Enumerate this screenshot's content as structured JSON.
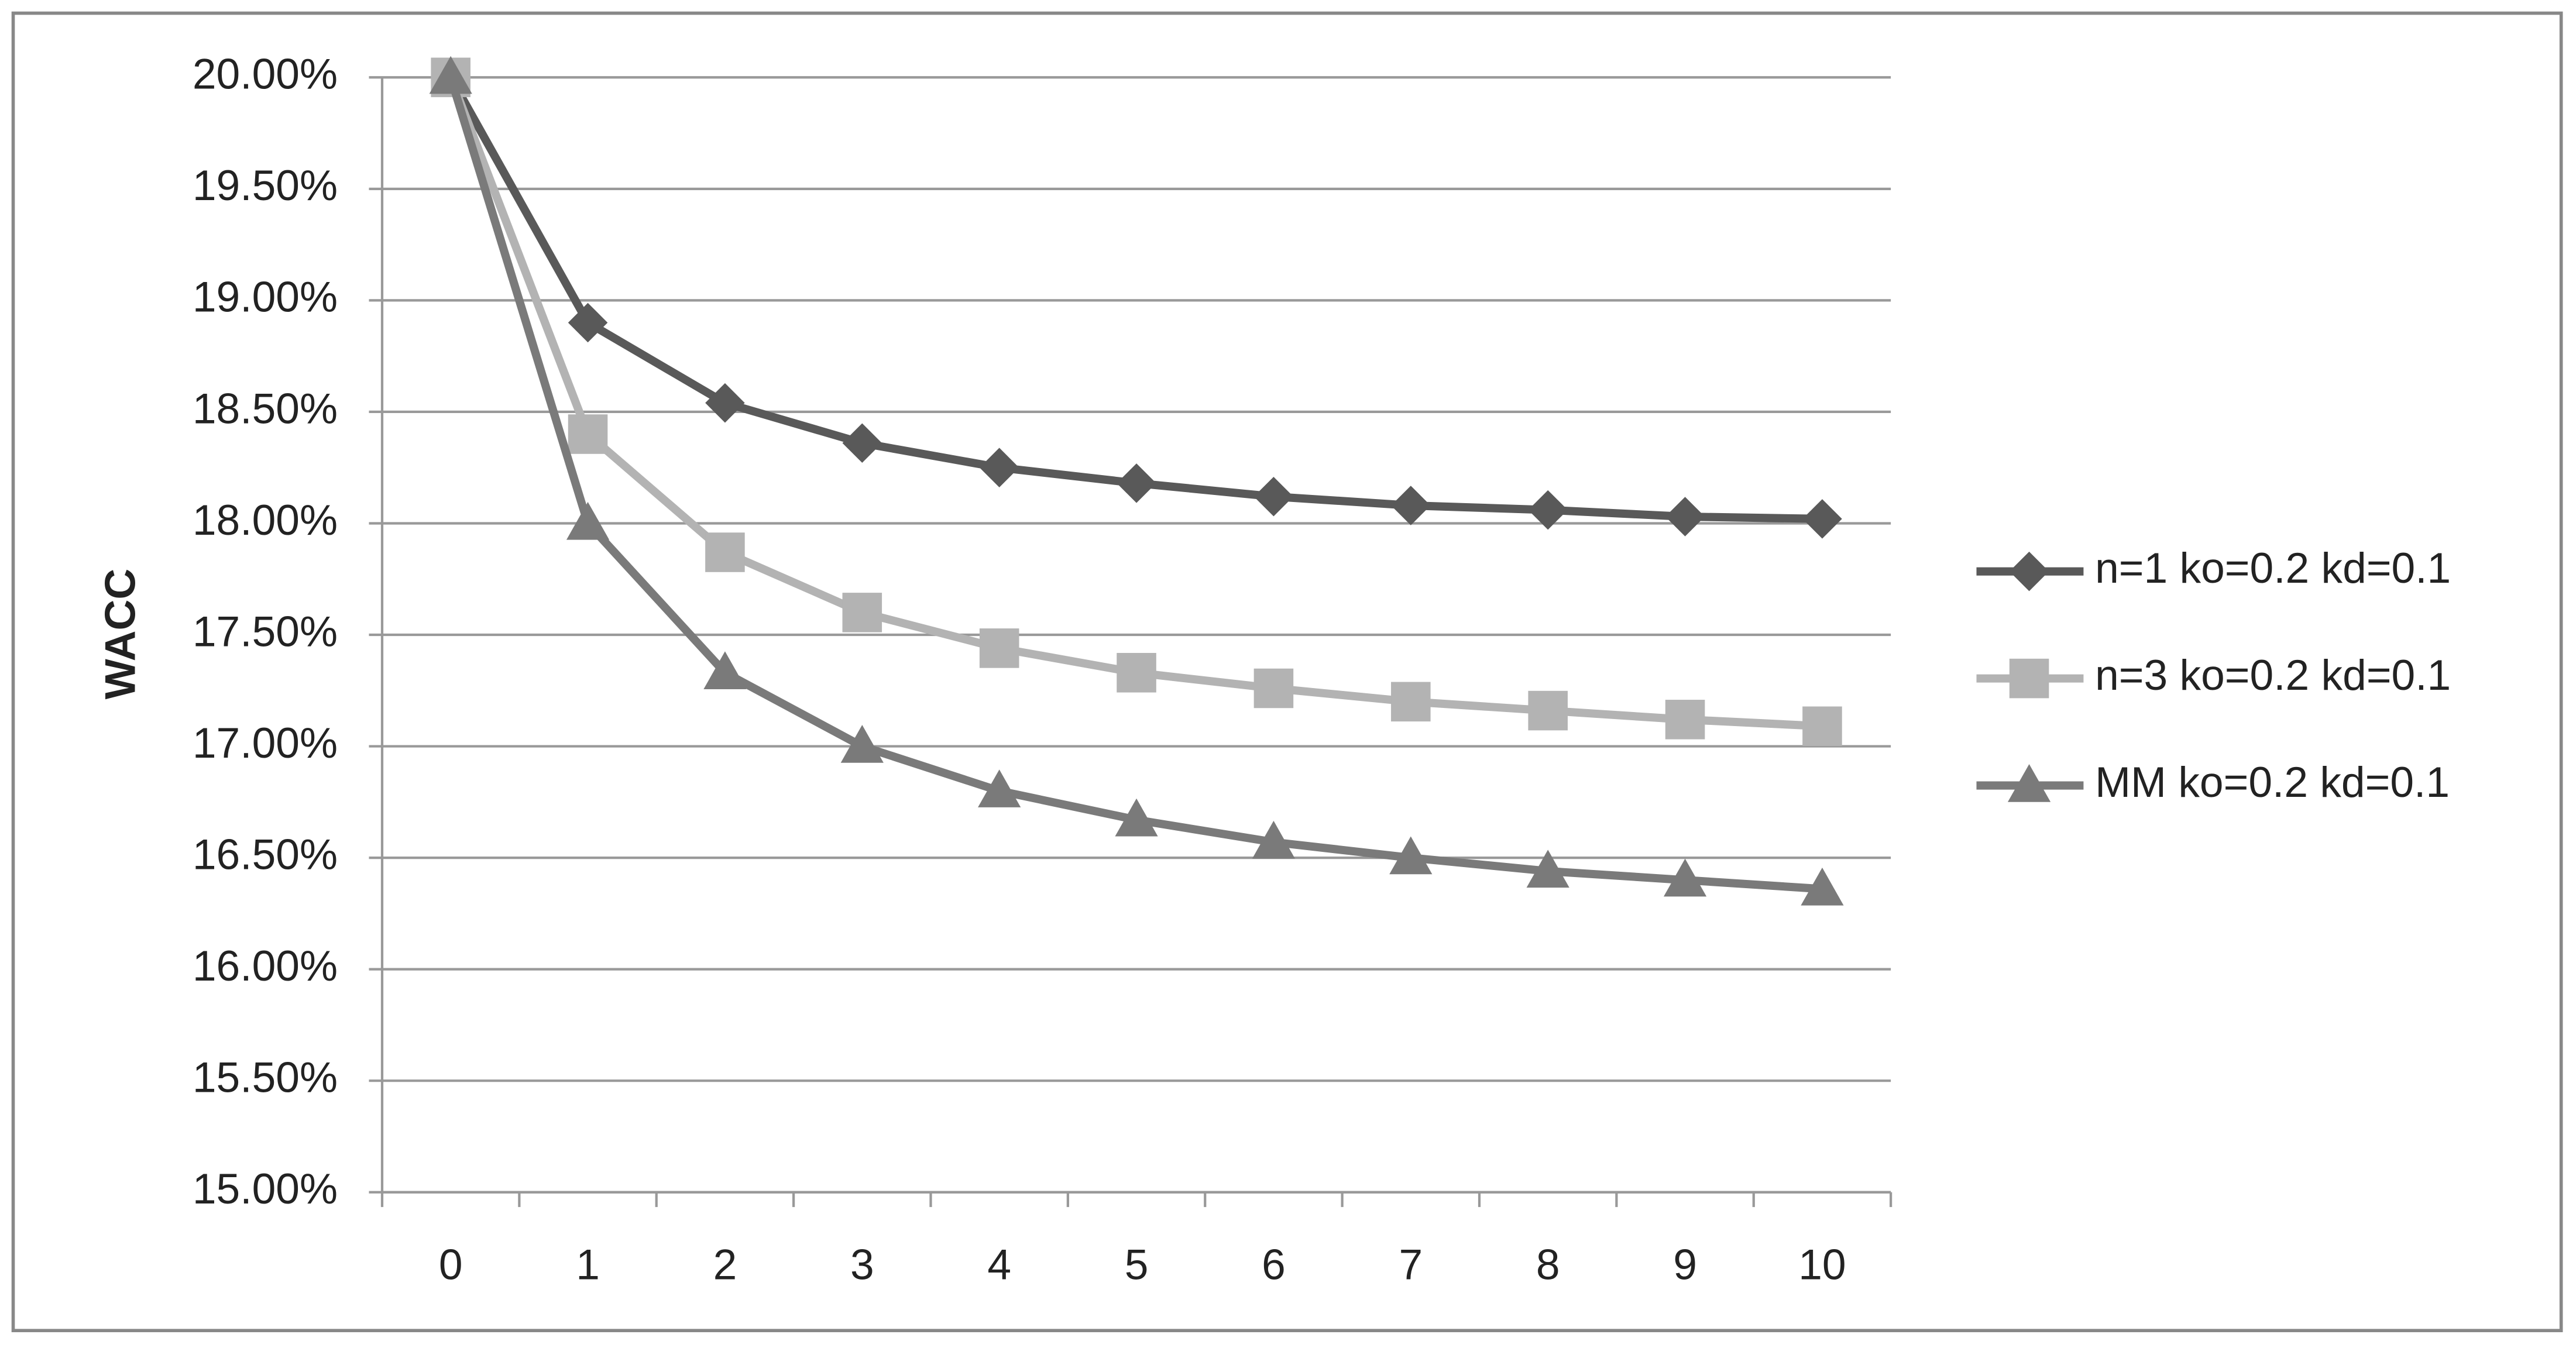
{
  "chart_data": {
    "type": "line",
    "y_label": "WACC",
    "categories": [
      "0",
      "1",
      "2",
      "3",
      "4",
      "5",
      "6",
      "7",
      "8",
      "9",
      "10"
    ],
    "series": [
      {
        "name": "n=1 ko=0.2 kd=0.1",
        "color": "#595959",
        "marker": "diamond",
        "values": [
          20,
          18.9,
          18.54,
          18.36,
          18.25,
          18.18,
          18.12,
          18.08,
          18.06,
          18.03,
          18.02
        ]
      },
      {
        "name": "n=3 ko=0.2 kd=0.1",
        "color": "#b3b3b3",
        "marker": "square",
        "values": [
          20,
          18.4,
          17.87,
          17.6,
          17.44,
          17.33,
          17.26,
          17.2,
          17.16,
          17.12,
          17.09
        ]
      },
      {
        "name": "MM ko=0.2 kd=0.1",
        "color": "#7a7a7a",
        "marker": "triangle",
        "values": [
          20,
          18.0,
          17.33,
          17.0,
          16.8,
          16.67,
          16.57,
          16.5,
          16.44,
          16.4,
          16.36
        ]
      }
    ],
    "ylim": [
      15,
      20
    ],
    "yticks": [
      {
        "value": 15,
        "label": "15.00%"
      },
      {
        "value": 15.5,
        "label": "15.50%"
      },
      {
        "value": 16,
        "label": "16.00%"
      },
      {
        "value": 16.5,
        "label": "16.50%"
      },
      {
        "value": 17,
        "label": "17.00%"
      },
      {
        "value": 17.5,
        "label": "17.50%"
      },
      {
        "value": 18,
        "label": "18.00%"
      },
      {
        "value": 18.5,
        "label": "18.50%"
      },
      {
        "value": 19,
        "label": "19.00%"
      },
      {
        "value": 19.5,
        "label": "19.50%"
      },
      {
        "value": 20,
        "label": "20.00%"
      }
    ],
    "grid": true,
    "legend": "right"
  }
}
